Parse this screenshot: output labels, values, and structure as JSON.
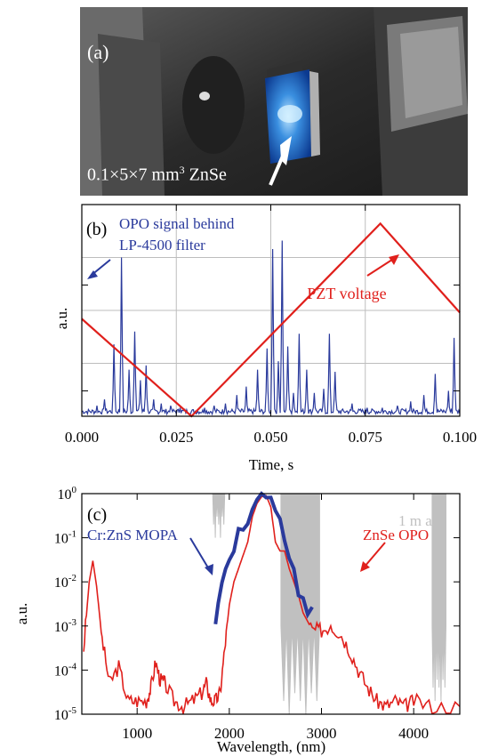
{
  "panels": {
    "a": {
      "label": "(a)",
      "caption": "0.1×5×7 mm",
      "caption_sup": "3",
      "caption_tail": " ZnSe"
    }
  },
  "chart_data": [
    {
      "panel_label": "(b)",
      "type": "line",
      "xlabel": "Time, s",
      "ylabel": "a.u.",
      "xlim": [
        0.0,
        0.1
      ],
      "xticks": [
        "0.000",
        "0.025",
        "0.050",
        "0.075",
        "0.100"
      ],
      "grid": true,
      "colors": {
        "signal": "#2a3a9c",
        "pzt": "#e0201c"
      },
      "annotations": [
        {
          "text": "OPO signal behind",
          "series": "signal"
        },
        {
          "text": "LP-4500 filter",
          "series": "signal"
        },
        {
          "text": "PZT voltage",
          "series": "pzt"
        }
      ],
      "series": [
        {
          "key": "pzt",
          "x": [
            0.0,
            0.029,
            0.079,
            0.1
          ],
          "y": [
            0.46,
            0.0,
            0.91,
            0.49
          ]
        },
        {
          "key": "signal",
          "peaks": [
            {
              "x": 0.004,
              "y": 0.05
            },
            {
              "x": 0.006,
              "y": 0.08
            },
            {
              "x": 0.0085,
              "y": 0.34
            },
            {
              "x": 0.0105,
              "y": 0.75
            },
            {
              "x": 0.0125,
              "y": 0.22
            },
            {
              "x": 0.014,
              "y": 0.4
            },
            {
              "x": 0.0155,
              "y": 0.17
            },
            {
              "x": 0.017,
              "y": 0.24
            },
            {
              "x": 0.019,
              "y": 0.08
            },
            {
              "x": 0.021,
              "y": 0.06
            },
            {
              "x": 0.0235,
              "y": 0.05
            },
            {
              "x": 0.026,
              "y": 0.04
            },
            {
              "x": 0.0325,
              "y": 0.04
            },
            {
              "x": 0.035,
              "y": 0.05
            },
            {
              "x": 0.038,
              "y": 0.06
            },
            {
              "x": 0.041,
              "y": 0.1
            },
            {
              "x": 0.0435,
              "y": 0.14
            },
            {
              "x": 0.0465,
              "y": 0.22
            },
            {
              "x": 0.049,
              "y": 0.32
            },
            {
              "x": 0.0505,
              "y": 0.79
            },
            {
              "x": 0.052,
              "y": 0.26
            },
            {
              "x": 0.053,
              "y": 0.83
            },
            {
              "x": 0.0545,
              "y": 0.33
            },
            {
              "x": 0.056,
              "y": 0.11
            },
            {
              "x": 0.0575,
              "y": 0.39
            },
            {
              "x": 0.0595,
              "y": 0.22
            },
            {
              "x": 0.0615,
              "y": 0.11
            },
            {
              "x": 0.064,
              "y": 0.13
            },
            {
              "x": 0.0655,
              "y": 0.39
            },
            {
              "x": 0.067,
              "y": 0.21
            },
            {
              "x": 0.0715,
              "y": 0.06
            },
            {
              "x": 0.0755,
              "y": 0.04
            },
            {
              "x": 0.0795,
              "y": 0.04
            },
            {
              "x": 0.0835,
              "y": 0.05
            },
            {
              "x": 0.087,
              "y": 0.07
            },
            {
              "x": 0.0905,
              "y": 0.1
            },
            {
              "x": 0.0935,
              "y": 0.2
            },
            {
              "x": 0.097,
              "y": 0.12
            },
            {
              "x": 0.0985,
              "y": 0.37
            }
          ]
        }
      ]
    },
    {
      "panel_label": "(c)",
      "type": "line",
      "xlabel": "Wavelength, (nm)",
      "ylabel": "a.u.",
      "yscale": "log",
      "xlim": [
        400,
        4500
      ],
      "ylim": [
        1e-05,
        1
      ],
      "xticks": [
        "1000",
        "2000",
        "3000",
        "4000"
      ],
      "ytick_base": "10",
      "ytick_exps": [
        "-5",
        "-4",
        "-3",
        "-2",
        "-1",
        "0"
      ],
      "colors": {
        "zns": "#2a3a9c",
        "znse": "#e0201c",
        "air": "#c0c0c0"
      },
      "annotations": [
        {
          "text": "Cr:ZnS MOPA",
          "series": "zns"
        },
        {
          "text": "ZnSe OPO",
          "series": "znse"
        },
        {
          "text": "1 m air",
          "series": "air"
        }
      ],
      "series": [
        {
          "key": "air_bands",
          "bands": [
            {
              "x0": 1820,
              "x1": 1950,
              "y_min": 0.1
            },
            {
              "x0": 2560,
              "x1": 2980,
              "y_min": 1e-05
            },
            {
              "x0": 4200,
              "x1": 4350,
              "y_min": 2e-05
            }
          ]
        },
        {
          "key": "zns",
          "x": [
            1850,
            1880,
            1920,
            1960,
            2000,
            2050,
            2100,
            2150,
            2200,
            2250,
            2300,
            2350,
            2400,
            2450,
            2500,
            2550,
            2600,
            2650,
            2700,
            2750,
            2800,
            2850,
            2900
          ],
          "y": [
            0.001,
            0.003,
            0.01,
            0.02,
            0.03,
            0.06,
            0.15,
            0.18,
            0.25,
            0.4,
            0.7,
            1.0,
            0.95,
            0.8,
            0.5,
            0.3,
            0.09,
            0.03,
            0.02,
            0.005,
            0.004,
            0.002,
            0.003
          ]
        },
        {
          "key": "znse",
          "x": [
            420,
            480,
            520,
            560,
            620,
            700,
            800,
            900,
            1000,
            1100,
            1150,
            1200,
            1250,
            1300,
            1400,
            1500,
            1600,
            1700,
            1750,
            1800,
            1850,
            1900,
            1950,
            2000,
            2050,
            2100,
            2150,
            2200,
            2250,
            2300,
            2350,
            2400,
            2450,
            2500,
            2550,
            2600,
            2650,
            2700,
            2750,
            2800,
            2900,
            3000,
            3100,
            3200,
            3300,
            3400,
            3500,
            3600,
            3700,
            3800,
            3900,
            4000,
            4200,
            4500
          ],
          "y": [
            0.0003,
            0.01,
            0.03,
            0.008,
            0.0005,
            5e-05,
            0.00012,
            2e-05,
            2e-05,
            2e-05,
            4e-05,
            0.00015,
            6e-05,
            5e-05,
            2e-05,
            1.5e-05,
            2e-05,
            3e-05,
            5e-05,
            2e-05,
            2e-05,
            3e-05,
            0.0003,
            0.003,
            0.01,
            0.02,
            0.04,
            0.08,
            0.3,
            0.6,
            0.85,
            0.9,
            0.5,
            0.08,
            0.05,
            0.05,
            0.02,
            0.01,
            0.005,
            0.002,
            0.0008,
            0.0008,
            0.001,
            0.0007,
            0.0003,
            0.0001,
            4e-05,
            2e-05,
            1.5e-05,
            2e-05,
            1.5e-05,
            2e-05,
            1.5e-05,
            1.5e-05
          ]
        }
      ]
    }
  ]
}
